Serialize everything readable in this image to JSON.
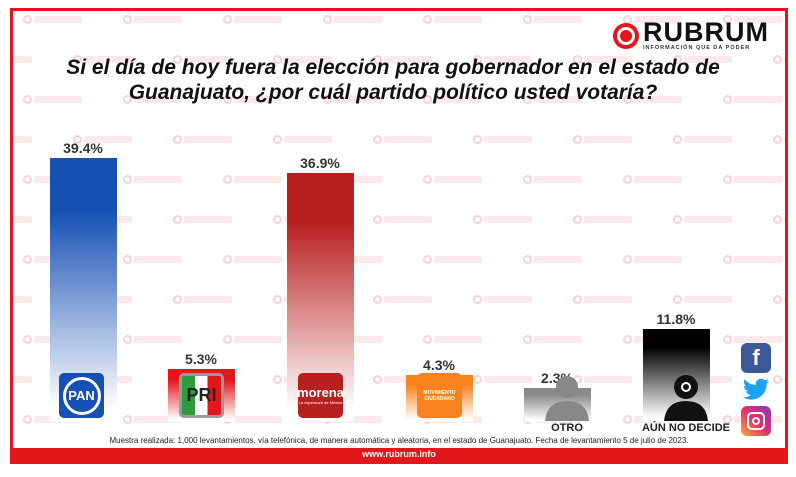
{
  "brand": {
    "name": "RUBRUM",
    "tagline": "INFORMACIÓN QUE DA PODER",
    "watermark": "RUBRUM"
  },
  "chart_data": {
    "type": "bar",
    "title": "Si el día de hoy fuera la elección para gobernador en el estado de Guanajuato, ¿por cuál  partido político usted votaría?",
    "categories": [
      "PAN",
      "PRI",
      "morena",
      "Movimiento Ciudadano",
      "OTRO",
      "AÚN NO DECIDE"
    ],
    "values": [
      39.4,
      5.3,
      36.9,
      4.3,
      2.3,
      11.8
    ],
    "value_labels": [
      "39.4%",
      "5.3%",
      "36.9%",
      "4.3%",
      "2.3%",
      "11.8%"
    ],
    "colors": [
      "#1750b5",
      "#e3161b",
      "#b8201f",
      "#f7821e",
      "#8a8a8a",
      "#000000"
    ],
    "unit": "%"
  },
  "logos": {
    "pan": "PAN",
    "pri": "PRI",
    "morena": "morena",
    "morena_sub": "La esperanza de México",
    "mc": "MOVIMIENTO CIUDADANO"
  },
  "axis_labels": {
    "otro": "OTRO",
    "aun": "AÚN NO DECIDE"
  },
  "social": {
    "facebook": "f",
    "twitter": "t",
    "instagram": "ig"
  },
  "note": "Muestra realizada: 1,000 levantamientos, vía telefónica, de manera automática y aleatoria, en el estado de Guanajuato. Fecha de levantamiento 5 de julio de 2023.",
  "footer": "www.rubrum.info"
}
